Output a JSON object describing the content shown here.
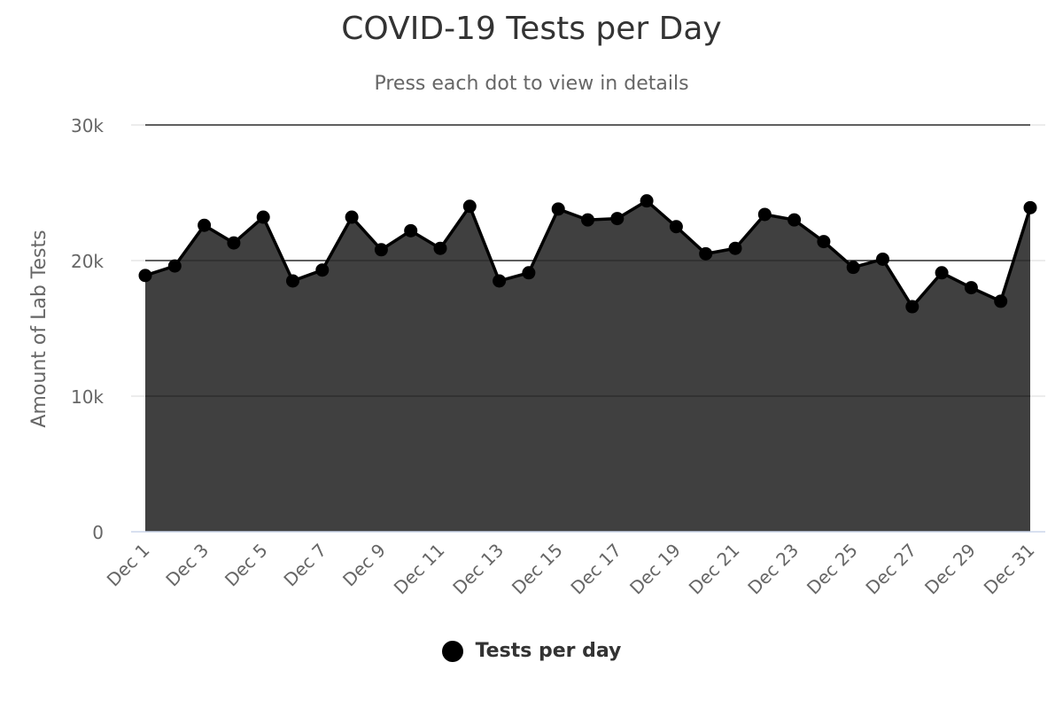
{
  "chart_data": {
    "type": "area",
    "title": "COVID-19 Tests per Day",
    "subtitle": "Press each dot to view in details",
    "ylabel": "Amount of Lab Tests",
    "xlabel": "",
    "ylim": [
      0,
      30000
    ],
    "y_ticks": [
      "0",
      "10k",
      "20k",
      "30k"
    ],
    "y_tick_values": [
      0,
      10000,
      20000,
      30000
    ],
    "x_tick_labels": [
      "Dec 1",
      "Dec 3",
      "Dec 5",
      "Dec 7",
      "Dec 9",
      "Dec 11",
      "Dec 13",
      "Dec 15",
      "Dec 17",
      "Dec 19",
      "Dec 21",
      "Dec 23",
      "Dec 25",
      "Dec 27",
      "Dec 29",
      "Dec 31"
    ],
    "categories": [
      "Dec 1",
      "Dec 2",
      "Dec 3",
      "Dec 4",
      "Dec 5",
      "Dec 6",
      "Dec 7",
      "Dec 8",
      "Dec 9",
      "Dec 10",
      "Dec 11",
      "Dec 12",
      "Dec 13",
      "Dec 14",
      "Dec 15",
      "Dec 16",
      "Dec 17",
      "Dec 18",
      "Dec 19",
      "Dec 20",
      "Dec 21",
      "Dec 22",
      "Dec 23",
      "Dec 24",
      "Dec 25",
      "Dec 26",
      "Dec 27",
      "Dec 28",
      "Dec 29",
      "Dec 30",
      "Dec 31"
    ],
    "series": [
      {
        "name": "Tests per day",
        "values": [
          18900,
          19600,
          22600,
          21300,
          23200,
          18500,
          19300,
          23200,
          20800,
          22200,
          20900,
          24000,
          18500,
          19100,
          23800,
          23000,
          23100,
          24400,
          22500,
          20500,
          20900,
          23400,
          23000,
          21400,
          19500,
          20100,
          16600,
          19100,
          18000,
          17000,
          23900
        ]
      }
    ],
    "grid": true,
    "legend_position": "bottom-center",
    "colors": {
      "area_fill": "#404040",
      "line": "#000000",
      "marker": "#000000",
      "grid": "#e6e6e6",
      "axis": "#ccd6eb",
      "tick_text": "#666666"
    }
  },
  "legend": {
    "label": "Tests per day",
    "marker_icon": "circle-marker-icon"
  }
}
